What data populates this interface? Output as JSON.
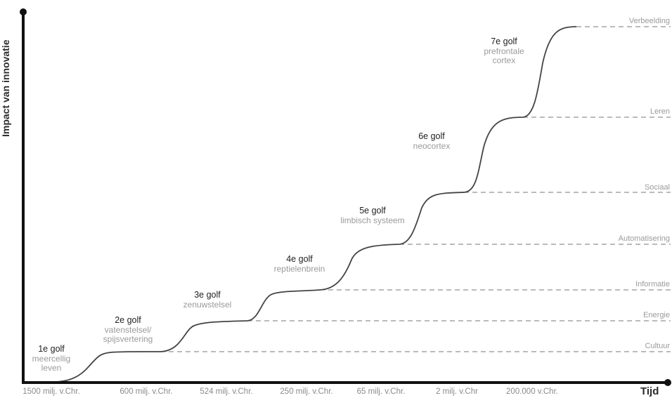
{
  "ylabel": "Impact van innovatie",
  "xlabel": "Tijd",
  "ticks": [
    "1500 milj. v.Chr.",
    "600 milj. v.Chr.",
    "524 milj. v.Chr.",
    "250 milj. v.Chr.",
    "65 milj. v.Chr.",
    "2 milj. v.Chr",
    "200.000 v.Chr."
  ],
  "levels": [
    "Cultuur",
    "Energie",
    "Informatie",
    "Automatisering",
    "Sociaal",
    "Leren",
    "Verbeelding"
  ],
  "waves": [
    {
      "title": "1e golf",
      "sub": [
        "meercellig",
        "leven"
      ]
    },
    {
      "title": "2e golf",
      "sub": [
        "vatenstelsel/",
        "spijsvertering"
      ]
    },
    {
      "title": "3e golf",
      "sub": [
        "zenuwstelsel"
      ]
    },
    {
      "title": "4e golf",
      "sub": [
        "reptielenbrein"
      ]
    },
    {
      "title": "5e golf",
      "sub": [
        "limbisch systeem"
      ]
    },
    {
      "title": "6e golf",
      "sub": [
        "neocortex"
      ]
    },
    {
      "title": "7e golf",
      "sub": [
        "prefrontale",
        "cortex"
      ]
    }
  ],
  "colors": {
    "axis": "#111111",
    "curve": "#444444",
    "dash": "#777777"
  }
}
